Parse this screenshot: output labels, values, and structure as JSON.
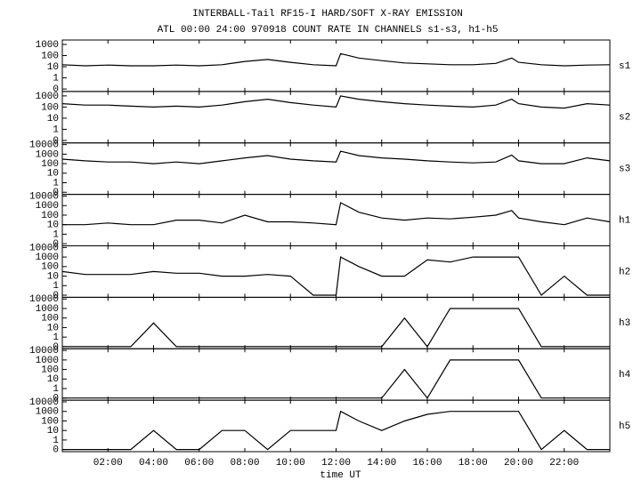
{
  "title": "INTERBALL-Tail RF15-I HARD/SOFT X-RAY EMISSION",
  "subtitle": "ATL 00:00 24:00 970918  COUNT RATE IN CHANNELS s1-s3, h1-h5",
  "chart_data": [
    {
      "type": "line",
      "name": "s1",
      "log": true,
      "color": "#000000",
      "x": [
        0,
        1,
        2,
        3,
        4,
        5,
        6,
        7,
        8,
        9,
        10,
        11,
        12,
        12.2,
        13,
        14,
        15,
        16,
        17,
        18,
        19,
        19.7,
        20,
        21,
        22,
        23,
        24
      ],
      "values": [
        15,
        12,
        14,
        12,
        12,
        14,
        12,
        15,
        30,
        45,
        25,
        15,
        12,
        150,
        60,
        35,
        22,
        18,
        15,
        15,
        20,
        60,
        25,
        15,
        12,
        14,
        15
      ],
      "ylim": [
        0.06,
        2500
      ],
      "yticks": [
        {
          "value": 0.1,
          "label": "0"
        },
        1,
        10,
        100,
        1000
      ]
    },
    {
      "type": "line",
      "name": "s2",
      "log": true,
      "color": "#000000",
      "x": [
        0,
        1,
        2,
        3,
        4,
        5,
        6,
        7,
        8,
        9,
        10,
        11,
        12,
        12.2,
        13,
        14,
        15,
        16,
        17,
        18,
        19,
        19.7,
        20,
        21,
        22,
        23,
        24
      ],
      "values": [
        200,
        150,
        150,
        120,
        100,
        120,
        100,
        150,
        300,
        500,
        250,
        150,
        100,
        1000,
        500,
        300,
        200,
        150,
        120,
        100,
        150,
        500,
        200,
        100,
        80,
        200,
        150
      ],
      "ylim": [
        0.06,
        2500
      ],
      "yticks": [
        {
          "value": 0.1,
          "label": "0"
        },
        1,
        10,
        100,
        1000
      ]
    },
    {
      "type": "line",
      "name": "s3",
      "log": true,
      "color": "#000000",
      "x": [
        0,
        1,
        2,
        3,
        4,
        5,
        6,
        7,
        8,
        9,
        10,
        11,
        12,
        12.2,
        13,
        14,
        15,
        16,
        17,
        18,
        19,
        19.7,
        20,
        21,
        22,
        23,
        24
      ],
      "values": [
        300,
        200,
        150,
        150,
        100,
        150,
        100,
        200,
        400,
        700,
        300,
        200,
        150,
        2000,
        700,
        400,
        300,
        200,
        150,
        120,
        150,
        800,
        200,
        100,
        100,
        400,
        200
      ],
      "ylim": [
        0.06,
        15000
      ],
      "yticks": [
        {
          "value": 0.1,
          "label": "0"
        },
        1,
        10,
        100,
        1000,
        10000
      ]
    },
    {
      "type": "line",
      "name": "h1",
      "log": true,
      "color": "#000000",
      "x": [
        0,
        1,
        2,
        3,
        4,
        5,
        6,
        7,
        8,
        9,
        10,
        11,
        12,
        12.2,
        13,
        14,
        15,
        16,
        17,
        18,
        19,
        19.7,
        20,
        21,
        22,
        23,
        24
      ],
      "values": [
        10,
        10,
        15,
        10,
        10,
        30,
        30,
        15,
        100,
        20,
        20,
        15,
        10,
        2000,
        200,
        50,
        30,
        50,
        40,
        60,
        100,
        300,
        50,
        20,
        10,
        50,
        20
      ],
      "ylim": [
        0.06,
        15000
      ],
      "yticks": [
        {
          "value": 0.1,
          "label": "0"
        },
        1,
        10,
        100,
        1000,
        10000
      ]
    },
    {
      "type": "line",
      "name": "h2",
      "log": true,
      "color": "#000000",
      "x": [
        0,
        1,
        2,
        3,
        4,
        5,
        6,
        7,
        8,
        9,
        10,
        11,
        12,
        12.2,
        13,
        14,
        15,
        16,
        17,
        18,
        19,
        19.7,
        20,
        21,
        22,
        23,
        24
      ],
      "values": [
        30,
        15,
        15,
        15,
        30,
        20,
        20,
        10,
        10,
        15,
        10,
        0.1,
        0.1,
        1000,
        100,
        10,
        10,
        500,
        300,
        1000,
        1000,
        1000,
        1000,
        0.1,
        10,
        0.1,
        0.1
      ],
      "ylim": [
        0.06,
        15000
      ],
      "yticks": [
        {
          "value": 0.1,
          "label": "0"
        },
        1,
        10,
        100,
        1000,
        10000
      ]
    },
    {
      "type": "line",
      "name": "h3",
      "log": true,
      "color": "#000000",
      "x": [
        0,
        1,
        2,
        3,
        4,
        5,
        6,
        7,
        8,
        9,
        10,
        11,
        12,
        12.2,
        13,
        14,
        15,
        16,
        17,
        18,
        19,
        19.7,
        20,
        21,
        22,
        23,
        24
      ],
      "values": [
        0.1,
        0.1,
        0.1,
        0.1,
        30,
        0.1,
        0.1,
        0.1,
        0.1,
        0.1,
        0.1,
        0.1,
        0.1,
        0.1,
        0.1,
        0.1,
        100,
        0.1,
        1000,
        1000,
        1000,
        1000,
        1000,
        0.1,
        0.1,
        0.1,
        0.1
      ],
      "ylim": [
        0.06,
        15000
      ],
      "yticks": [
        {
          "value": 0.1,
          "label": "0"
        },
        1,
        10,
        100,
        1000,
        10000
      ]
    },
    {
      "type": "line",
      "name": "h4",
      "log": true,
      "color": "#000000",
      "x": [
        0,
        1,
        2,
        3,
        4,
        5,
        6,
        7,
        8,
        9,
        10,
        11,
        12,
        12.2,
        13,
        14,
        15,
        16,
        17,
        18,
        19,
        19.7,
        20,
        21,
        22,
        23,
        24
      ],
      "values": [
        0.1,
        0.1,
        0.1,
        0.1,
        0.1,
        0.1,
        0.1,
        0.1,
        0.1,
        0.1,
        0.1,
        0.1,
        0.1,
        0.1,
        0.1,
        0.1,
        100,
        0.1,
        1000,
        1000,
        1000,
        1000,
        1000,
        0.1,
        0.1,
        0.1,
        0.1
      ],
      "ylim": [
        0.06,
        15000
      ],
      "yticks": [
        {
          "value": 0.1,
          "label": "0"
        },
        1,
        10,
        100,
        1000,
        10000
      ]
    },
    {
      "type": "line",
      "name": "h5",
      "log": true,
      "color": "#000000",
      "x": [
        0,
        1,
        2,
        3,
        4,
        5,
        6,
        7,
        8,
        9,
        10,
        11,
        12,
        12.2,
        13,
        14,
        15,
        16,
        17,
        18,
        19,
        19.7,
        20,
        21,
        22,
        23,
        24
      ],
      "values": [
        0.1,
        0.1,
        0.1,
        0.1,
        10,
        0.1,
        0.1,
        10,
        10,
        0.1,
        10,
        10,
        10,
        1000,
        100,
        10,
        100,
        500,
        1000,
        1000,
        1000,
        1000,
        1000,
        0.1,
        10,
        0.1,
        0.1
      ],
      "ylim": [
        0.06,
        15000
      ],
      "yticks": [
        {
          "value": 0.1,
          "label": "0"
        },
        1,
        10,
        100,
        1000,
        10000
      ],
      "xlim": [
        0,
        24
      ],
      "xticks": [
        {
          "value": 2,
          "label": "02:00"
        },
        {
          "value": 4,
          "label": "04:00"
        },
        {
          "value": 6,
          "label": "06:00"
        },
        {
          "value": 8,
          "label": "08:00"
        },
        {
          "value": 10,
          "label": "10:00"
        },
        {
          "value": 12,
          "label": "12:00"
        },
        {
          "value": 14,
          "label": "14:00"
        },
        {
          "value": 16,
          "label": "16:00"
        },
        {
          "value": 18,
          "label": "18:00"
        },
        {
          "value": 20,
          "label": "20:00"
        },
        {
          "value": 22,
          "label": "22:00"
        }
      ],
      "xlabel": "time UT"
    }
  ]
}
